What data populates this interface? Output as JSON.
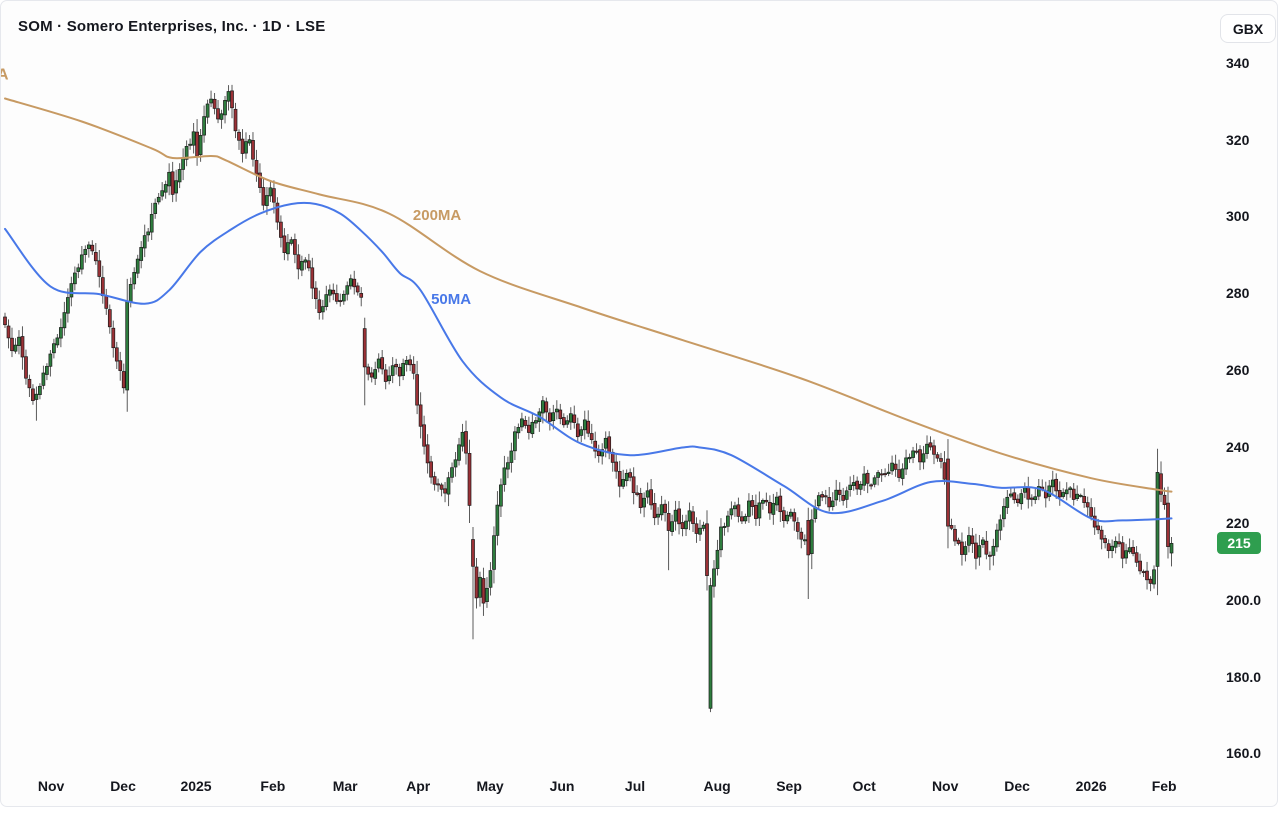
{
  "header": {
    "title": "SOM · Somero Enterprises, Inc. · 1D · LSE",
    "currency_badge": "GBX"
  },
  "chart_data": {
    "type": "candlestick",
    "symbol": "SOM",
    "company": "Somero Enterprises, Inc.",
    "interval": "1D",
    "exchange": "LSE",
    "currency": "GBX",
    "grid": "off",
    "y_axis": {
      "ticks": [
        {
          "label": "340",
          "price": 340
        },
        {
          "label": "320",
          "price": 320
        },
        {
          "label": "300",
          "price": 300
        },
        {
          "label": "280",
          "price": 280
        },
        {
          "label": "260",
          "price": 260
        },
        {
          "label": "240",
          "price": 240
        },
        {
          "label": "220",
          "price": 220
        },
        {
          "label": "200.0",
          "price": 200
        },
        {
          "label": "180.0",
          "price": 180
        },
        {
          "label": "160.0",
          "price": 160
        }
      ],
      "range": [
        160,
        340
      ],
      "last_price": {
        "label": "215",
        "value": 215,
        "color": "#2f9e4f"
      }
    },
    "x_axis": {
      "months": [
        {
          "label": "Nov",
          "bar": 13.2,
          "bold": false
        },
        {
          "label": "Dec",
          "bar": 33.8,
          "bold": false
        },
        {
          "label": "2025",
          "bar": 54.7,
          "bold": true
        },
        {
          "label": "Feb",
          "bar": 76.7,
          "bold": false
        },
        {
          "label": "Mar",
          "bar": 97.4,
          "bold": false
        },
        {
          "label": "Apr",
          "bar": 118.3,
          "bold": false
        },
        {
          "label": "May",
          "bar": 138.9,
          "bold": false
        },
        {
          "label": "Jun",
          "bar": 159.5,
          "bold": false
        },
        {
          "label": "Jul",
          "bar": 180.4,
          "bold": false
        },
        {
          "label": "Aug",
          "bar": 203.9,
          "bold": false
        },
        {
          "label": "Sep",
          "bar": 224.5,
          "bold": false
        },
        {
          "label": "Oct",
          "bar": 246.0,
          "bold": false
        },
        {
          "label": "Nov",
          "bar": 269.2,
          "bold": false
        },
        {
          "label": "Dec",
          "bar": 289.8,
          "bold": false
        },
        {
          "label": "2026",
          "bar": 311.0,
          "bold": true
        },
        {
          "label": "Feb",
          "bar": 331.9,
          "bold": false
        }
      ]
    },
    "bars": {
      "count": 335,
      "noise_seed": 11,
      "close_anchors": [
        [
          0,
          272
        ],
        [
          2,
          265
        ],
        [
          4,
          268
        ],
        [
          6,
          259
        ],
        [
          8,
          252
        ],
        [
          10,
          256
        ],
        [
          13,
          264
        ],
        [
          16,
          272
        ],
        [
          19,
          283
        ],
        [
          22,
          290
        ],
        [
          24,
          293
        ],
        [
          26,
          288
        ],
        [
          28,
          280
        ],
        [
          30,
          272
        ],
        [
          32,
          262
        ],
        [
          34,
          256
        ],
        [
          35,
          278
        ],
        [
          37,
          286
        ],
        [
          39,
          292
        ],
        [
          41,
          297
        ],
        [
          43,
          303
        ],
        [
          45,
          308
        ],
        [
          47,
          311
        ],
        [
          48,
          306
        ],
        [
          50,
          313
        ],
        [
          52,
          318
        ],
        [
          54,
          322
        ],
        [
          55,
          317
        ],
        [
          57,
          326
        ],
        [
          59,
          331
        ],
        [
          61,
          326
        ],
        [
          63,
          330
        ],
        [
          64,
          333
        ],
        [
          66,
          323
        ],
        [
          68,
          317
        ],
        [
          70,
          321
        ],
        [
          72,
          311
        ],
        [
          74,
          304
        ],
        [
          76,
          308
        ],
        [
          78,
          298
        ],
        [
          80,
          291
        ],
        [
          82,
          294
        ],
        [
          84,
          287
        ],
        [
          86,
          290
        ],
        [
          88,
          282
        ],
        [
          90,
          276
        ],
        [
          93,
          281
        ],
        [
          96,
          278
        ],
        [
          99,
          283
        ],
        [
          102,
          279
        ],
        [
          103,
          262
        ],
        [
          105,
          258
        ],
        [
          107,
          262
        ],
        [
          109,
          258
        ],
        [
          111,
          261
        ],
        [
          113,
          259
        ],
        [
          115,
          263
        ],
        [
          117,
          259
        ],
        [
          118,
          252
        ],
        [
          119,
          246
        ],
        [
          120,
          240
        ],
        [
          122,
          232
        ],
        [
          124,
          230
        ],
        [
          126,
          229
        ],
        [
          128,
          235
        ],
        [
          130,
          240
        ],
        [
          131,
          243
        ],
        [
          132,
          238
        ],
        [
          133,
          226
        ],
        [
          134,
          210
        ],
        [
          135,
          200
        ],
        [
          136,
          206
        ],
        [
          137,
          199
        ],
        [
          138,
          203
        ],
        [
          139,
          209
        ],
        [
          140,
          217
        ],
        [
          141,
          225
        ],
        [
          142,
          231
        ],
        [
          144,
          237
        ],
        [
          146,
          243
        ],
        [
          148,
          247
        ],
        [
          150,
          243
        ],
        [
          152,
          248
        ],
        [
          154,
          252
        ],
        [
          156,
          247
        ],
        [
          158,
          251
        ],
        [
          160,
          246
        ],
        [
          162,
          249
        ],
        [
          164,
          243
        ],
        [
          166,
          247
        ],
        [
          168,
          241
        ],
        [
          170,
          238
        ],
        [
          172,
          242
        ],
        [
          174,
          236
        ],
        [
          176,
          231
        ],
        [
          178,
          234
        ],
        [
          180,
          229
        ],
        [
          182,
          225
        ],
        [
          184,
          228
        ],
        [
          186,
          221
        ],
        [
          188,
          226
        ],
        [
          190,
          219
        ],
        [
          192,
          224
        ],
        [
          194,
          218
        ],
        [
          196,
          223
        ],
        [
          198,
          217
        ],
        [
          200,
          220
        ],
        [
          201,
          206
        ],
        [
          202,
          204
        ],
        [
          203,
          209
        ],
        [
          204,
          214
        ],
        [
          205,
          219
        ],
        [
          207,
          222
        ],
        [
          209,
          224
        ],
        [
          211,
          220
        ],
        [
          213,
          226
        ],
        [
          215,
          222
        ],
        [
          217,
          227
        ],
        [
          219,
          223
        ],
        [
          221,
          226
        ],
        [
          223,
          221
        ],
        [
          225,
          224
        ],
        [
          227,
          219
        ],
        [
          229,
          215
        ],
        [
          230,
          212
        ],
        [
          231,
          221
        ],
        [
          232,
          225
        ],
        [
          234,
          228
        ],
        [
          236,
          225
        ],
        [
          238,
          229
        ],
        [
          240,
          227
        ],
        [
          242,
          231
        ],
        [
          244,
          229
        ],
        [
          246,
          232
        ],
        [
          248,
          230
        ],
        [
          250,
          234
        ],
        [
          252,
          232
        ],
        [
          254,
          236
        ],
        [
          256,
          233
        ],
        [
          258,
          237
        ],
        [
          260,
          240
        ],
        [
          262,
          237
        ],
        [
          264,
          241
        ],
        [
          266,
          238
        ],
        [
          268,
          236
        ],
        [
          269,
          232
        ],
        [
          270,
          220
        ],
        [
          272,
          216
        ],
        [
          274,
          213
        ],
        [
          276,
          217
        ],
        [
          278,
          212
        ],
        [
          280,
          215
        ],
        [
          282,
          211
        ],
        [
          284,
          218
        ],
        [
          286,
          224
        ],
        [
          288,
          228
        ],
        [
          290,
          226
        ],
        [
          292,
          229
        ],
        [
          294,
          226
        ],
        [
          296,
          230
        ],
        [
          298,
          227
        ],
        [
          300,
          231
        ],
        [
          302,
          228
        ],
        [
          304,
          230
        ],
        [
          306,
          227
        ],
        [
          308,
          228
        ],
        [
          310,
          224
        ],
        [
          312,
          219
        ],
        [
          314,
          216
        ],
        [
          316,
          213
        ],
        [
          318,
          216
        ],
        [
          320,
          212
        ],
        [
          322,
          214
        ],
        [
          324,
          210
        ],
        [
          326,
          207
        ],
        [
          328,
          205
        ],
        [
          329,
          209
        ],
        [
          330,
          233
        ],
        [
          331,
          228
        ],
        [
          332,
          226
        ],
        [
          333,
          214
        ],
        [
          334,
          215
        ]
      ],
      "overrides": [
        {
          "bar": 35,
          "open": 255,
          "close": 278
        },
        {
          "bar": 103,
          "open": 271,
          "close": 261
        },
        {
          "bar": 134,
          "open": 216,
          "close": 209
        },
        {
          "bar": 202,
          "open": 172,
          "close": 204,
          "high": 206,
          "low": 171
        },
        {
          "bar": 230,
          "open": 221,
          "close": 212
        },
        {
          "bar": 270,
          "open": 237,
          "close": 219.5
        },
        {
          "bar": 330,
          "open": 209,
          "close": 233.5
        },
        {
          "bar": 334,
          "open": 212.5,
          "close": 215,
          "low": 209
        }
      ],
      "spikes": [
        {
          "bar": 9,
          "low": 247
        },
        {
          "bar": 64,
          "high": 334.5
        },
        {
          "bar": 103,
          "low": 251
        },
        {
          "bar": 134,
          "low": 190
        },
        {
          "bar": 190,
          "low": 208
        },
        {
          "bar": 202,
          "low": 171
        },
        {
          "bar": 230,
          "low": 200.5
        },
        {
          "bar": 282,
          "low": 208
        },
        {
          "bar": 327,
          "low": 203
        },
        {
          "bar": 330,
          "high": 238.5
        }
      ]
    },
    "moving_averages": [
      {
        "name": "200MA",
        "color": "#c79a63",
        "label_bar": 116.8,
        "label_price": 299.3,
        "points": [
          [
            0,
            331
          ],
          [
            22,
            325
          ],
          [
            42,
            318
          ],
          [
            48,
            315.5
          ],
          [
            59,
            316
          ],
          [
            63,
            315
          ],
          [
            76,
            309.5
          ],
          [
            90,
            306
          ],
          [
            110,
            301
          ],
          [
            136,
            286
          ],
          [
            165,
            276.5
          ],
          [
            194,
            268
          ],
          [
            228,
            258
          ],
          [
            259,
            247
          ],
          [
            285,
            238.5
          ],
          [
            311,
            232
          ],
          [
            330,
            229
          ],
          [
            334,
            228.5
          ]
        ]
      },
      {
        "name": "50MA",
        "color": "#4878e8",
        "label_bar": 122.0,
        "label_price": 277.4,
        "points": [
          [
            0,
            297
          ],
          [
            13,
            282
          ],
          [
            27,
            280
          ],
          [
            40,
            277.5
          ],
          [
            47,
            281
          ],
          [
            56,
            291
          ],
          [
            65,
            297
          ],
          [
            73,
            301
          ],
          [
            82,
            303.5
          ],
          [
            89,
            303.5
          ],
          [
            96,
            301
          ],
          [
            102,
            296.5
          ],
          [
            108,
            291
          ],
          [
            113,
            285.5
          ],
          [
            119,
            281
          ],
          [
            131,
            262.5
          ],
          [
            142,
            253
          ],
          [
            153,
            248
          ],
          [
            165,
            241
          ],
          [
            179,
            238
          ],
          [
            194,
            240
          ],
          [
            199,
            240
          ],
          [
            208,
            238
          ],
          [
            223,
            230
          ],
          [
            236,
            223
          ],
          [
            251,
            226
          ],
          [
            265,
            231
          ],
          [
            277,
            230.5
          ],
          [
            285,
            229.5
          ],
          [
            297,
            229
          ],
          [
            311,
            221.5
          ],
          [
            320,
            221
          ],
          [
            334,
            221.5
          ]
        ]
      }
    ],
    "edge_label": {
      "text": "A",
      "price": 336
    },
    "colors": {
      "up": "#2e7d3e",
      "down": "#9b3136",
      "wick": "#5a5a5a",
      "outline": "#1b1b1b",
      "text": "#15171e",
      "badge_green": "#2f9e4f"
    }
  }
}
